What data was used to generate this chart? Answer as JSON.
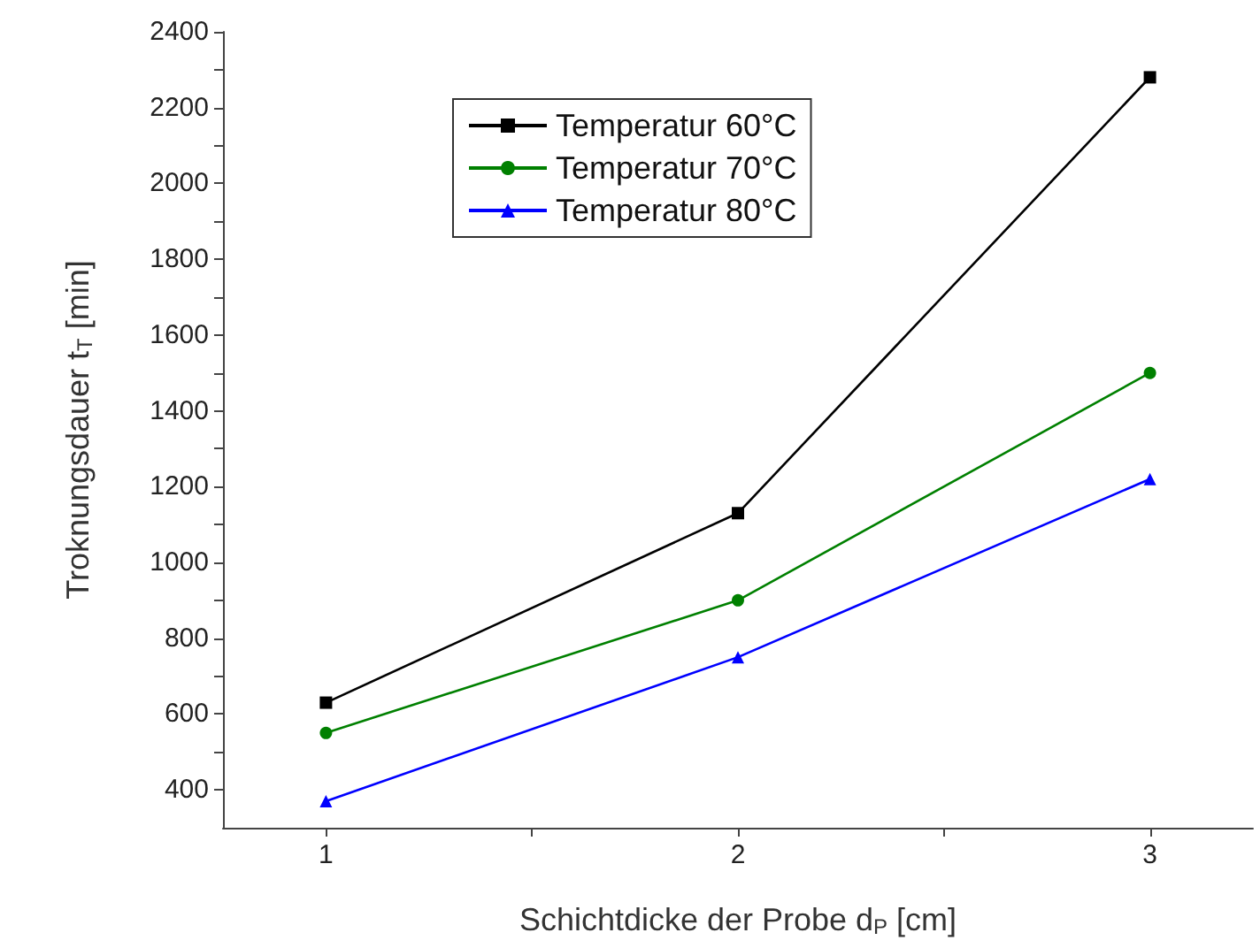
{
  "chart_data": {
    "type": "line",
    "xlabel": "Schichtdicke der Probe d$_{P}$ [cm]",
    "ylabel": "Troknungsdauer t$_{T}$ [min]",
    "x": [
      1,
      2,
      3
    ],
    "series": [
      {
        "name": "Temperatur 60°C",
        "color": "#000000",
        "marker": "square",
        "values": [
          630,
          1130,
          2280
        ]
      },
      {
        "name": "Temperatur 70°C",
        "color": "#008000",
        "marker": "circle",
        "values": [
          550,
          900,
          1500
        ]
      },
      {
        "name": "Temperatur 80°C",
        "color": "#0000ff",
        "marker": "triangle",
        "values": [
          370,
          750,
          1220
        ]
      }
    ],
    "xlim": [
      0.75,
      3.25
    ],
    "xticks": [
      1,
      {
        "value": 1.5,
        "label": null
      },
      2,
      {
        "value": 2.5,
        "label": null
      },
      3
    ],
    "ylim": [
      300,
      2400
    ],
    "yticks": [
      400,
      {
        "value": 500,
        "label": null
      },
      600,
      {
        "value": 700,
        "label": null
      },
      800,
      {
        "value": 900,
        "label": null
      },
      1000,
      {
        "value": 1100,
        "label": null
      },
      1200,
      {
        "value": 1300,
        "label": null
      },
      1400,
      {
        "value": 1500,
        "label": null
      },
      1600,
      {
        "value": 1700,
        "label": null
      },
      1800,
      {
        "value": 1900,
        "label": null
      },
      2000,
      {
        "value": 2100,
        "label": null
      },
      2200,
      {
        "value": 2300,
        "label": null
      },
      2400
    ],
    "grid": false,
    "legend": "top left",
    "line_style": "solid"
  }
}
